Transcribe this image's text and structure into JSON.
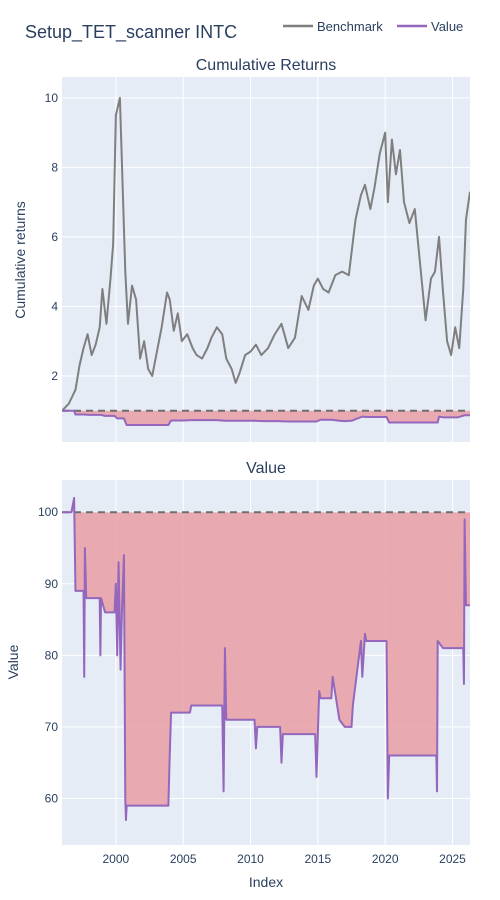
{
  "title": "Setup_TET_scanner INTC",
  "legend": {
    "placement": "top-right",
    "items": [
      {
        "label": "Benchmark",
        "color": "#7f7f7f"
      },
      {
        "label": "Value",
        "color": "#9467bd"
      }
    ]
  },
  "chart_data": [
    {
      "type": "line",
      "title": "Cumulative Returns",
      "xlabel": "",
      "ylabel": "Cumulative returns",
      "xlim": [
        1996.0,
        2026.3
      ],
      "ylim": [
        0.1,
        10.6
      ],
      "yticks": [
        2,
        4,
        6,
        8,
        10
      ],
      "grid": true,
      "reference_line": 1,
      "series": [
        {
          "name": "Benchmark",
          "color": "#7f7f7f",
          "x": [
            1996.0,
            1996.5,
            1997.0,
            1997.3,
            1997.6,
            1997.9,
            1998.2,
            1998.5,
            1998.8,
            1999.0,
            1999.3,
            1999.6,
            1999.8,
            2000.0,
            2000.3,
            2000.5,
            2000.7,
            2000.9,
            2001.2,
            2001.5,
            2001.8,
            2002.1,
            2002.4,
            2002.7,
            2003.0,
            2003.4,
            2003.8,
            2004.0,
            2004.3,
            2004.6,
            2004.9,
            2005.3,
            2005.7,
            2006.0,
            2006.4,
            2006.8,
            2007.1,
            2007.5,
            2007.9,
            2008.2,
            2008.6,
            2008.9,
            2009.2,
            2009.6,
            2010.0,
            2010.4,
            2010.8,
            2011.3,
            2011.8,
            2012.3,
            2012.8,
            2013.3,
            2013.8,
            2014.3,
            2014.7,
            2015.0,
            2015.4,
            2015.8,
            2016.3,
            2016.8,
            2017.3,
            2017.8,
            2018.2,
            2018.5,
            2018.9,
            2019.2,
            2019.6,
            2020.0,
            2020.2,
            2020.5,
            2020.8,
            2021.1,
            2021.4,
            2021.8,
            2022.2,
            2022.6,
            2023.0,
            2023.4,
            2023.7,
            2024.0,
            2024.3,
            2024.6,
            2024.9,
            2025.2,
            2025.5,
            2025.8,
            2026.0,
            2026.3
          ],
          "values": [
            1.0,
            1.2,
            1.6,
            2.3,
            2.8,
            3.2,
            2.6,
            2.9,
            3.4,
            4.5,
            3.5,
            4.8,
            5.8,
            9.5,
            10.0,
            7.5,
            5.0,
            3.5,
            4.6,
            4.2,
            2.5,
            3.0,
            2.2,
            2.0,
            2.6,
            3.4,
            4.4,
            4.2,
            3.3,
            3.8,
            3.0,
            3.2,
            2.8,
            2.6,
            2.5,
            2.8,
            3.1,
            3.4,
            3.2,
            2.5,
            2.2,
            1.8,
            2.1,
            2.6,
            2.7,
            2.9,
            2.6,
            2.8,
            3.2,
            3.5,
            2.8,
            3.1,
            4.3,
            3.9,
            4.6,
            4.8,
            4.5,
            4.4,
            4.9,
            5.0,
            4.9,
            6.5,
            7.2,
            7.5,
            6.8,
            7.4,
            8.4,
            9.0,
            7.0,
            8.8,
            7.8,
            8.5,
            7.0,
            6.4,
            6.8,
            5.2,
            3.6,
            4.8,
            5.0,
            6.0,
            4.4,
            3.0,
            2.6,
            3.4,
            2.8,
            4.5,
            6.5,
            7.3
          ]
        },
        {
          "name": "Value",
          "color": "#9467bd",
          "x": [
            1996.0,
            1996.9,
            1997.0,
            1997.6,
            1998.0,
            1998.9,
            1999.2,
            1999.9,
            2000.1,
            2000.6,
            2000.8,
            2001.2,
            2002.5,
            2003.9,
            2004.1,
            2005.0,
            2005.6,
            2006.5,
            2007.5,
            2008.1,
            2009.0,
            2010.3,
            2011.0,
            2012.0,
            2012.8,
            2014.0,
            2014.9,
            2015.2,
            2016.0,
            2016.6,
            2017.0,
            2017.5,
            2018.3,
            2018.6,
            2019.5,
            2020.1,
            2020.3,
            2022.0,
            2023.9,
            2024.0,
            2024.3,
            2025.4,
            2025.9,
            2026.3
          ],
          "values": [
            1.0,
            1.0,
            0.89,
            0.89,
            0.88,
            0.88,
            0.85,
            0.85,
            0.78,
            0.78,
            0.59,
            0.59,
            0.59,
            0.59,
            0.72,
            0.72,
            0.73,
            0.73,
            0.73,
            0.71,
            0.71,
            0.71,
            0.7,
            0.7,
            0.69,
            0.69,
            0.69,
            0.74,
            0.74,
            0.71,
            0.7,
            0.71,
            0.83,
            0.82,
            0.82,
            0.82,
            0.66,
            0.66,
            0.66,
            0.83,
            0.81,
            0.81,
            0.87,
            0.87
          ]
        }
      ]
    },
    {
      "type": "area",
      "title": "Value",
      "xlabel": "Index",
      "ylabel": "Value",
      "xlim": [
        1996.0,
        2026.3
      ],
      "ylim": [
        53.5,
        104.5
      ],
      "xticks": [
        2000,
        2005,
        2010,
        2015,
        2020,
        2025
      ],
      "yticks": [
        60,
        70,
        80,
        90,
        100
      ],
      "grid": true,
      "reference_line": 100,
      "fill_color": "#e8a3a8",
      "series": [
        {
          "name": "Value",
          "color": "#9467bd",
          "x": [
            1996.0,
            1996.7,
            1996.9,
            1997.0,
            1997.6,
            1997.65,
            1997.7,
            1997.8,
            1998.0,
            1998.8,
            1998.85,
            1998.9,
            1999.2,
            1999.9,
            2000.0,
            2000.1,
            2000.2,
            2000.35,
            2000.45,
            2000.6,
            2000.7,
            2000.75,
            2000.8,
            2001.0,
            2003.9,
            2004.0,
            2004.1,
            2005.0,
            2005.5,
            2005.6,
            2007.9,
            2008.0,
            2008.1,
            2008.2,
            2010.3,
            2010.4,
            2010.5,
            2012.2,
            2012.3,
            2012.4,
            2014.8,
            2014.9,
            2015.1,
            2015.2,
            2016.0,
            2016.1,
            2016.6,
            2017.0,
            2017.5,
            2017.6,
            2018.2,
            2018.3,
            2018.5,
            2018.6,
            2020.1,
            2020.2,
            2020.3,
            2023.8,
            2023.85,
            2023.9,
            2024.3,
            2025.8,
            2025.85,
            2025.9,
            2026.0,
            2026.3
          ],
          "values": [
            100,
            100,
            102,
            89,
            89,
            77,
            95,
            88,
            88,
            88,
            80,
            88,
            86,
            86,
            90,
            80,
            93,
            78,
            86,
            94,
            60,
            57,
            59,
            59,
            59,
            66,
            72,
            72,
            72,
            73,
            73,
            61,
            81,
            71,
            71,
            67,
            70,
            70,
            65,
            69,
            69,
            63,
            75,
            74,
            74,
            77,
            71,
            70,
            70,
            73,
            82,
            77,
            83,
            82,
            82,
            60,
            66,
            66,
            61,
            82,
            81,
            81,
            76,
            99,
            87,
            87
          ]
        }
      ]
    }
  ]
}
